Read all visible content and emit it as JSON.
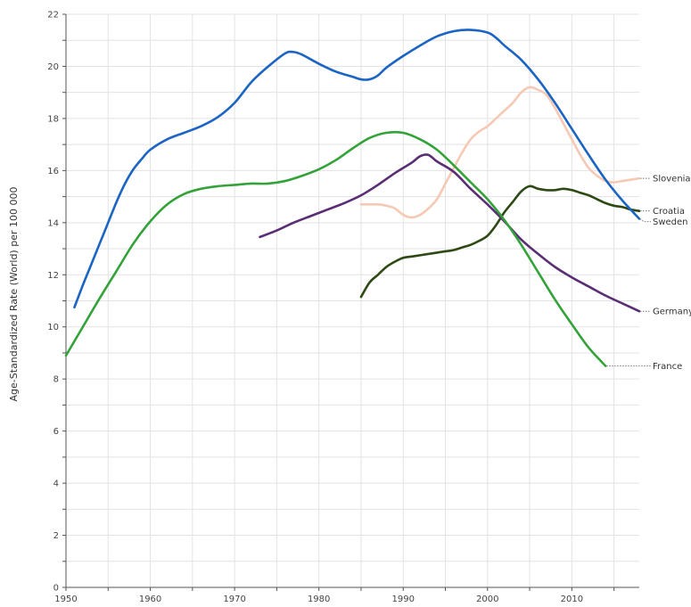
{
  "chart_data": {
    "type": "line",
    "title": "",
    "xlabel": "",
    "ylabel": "Age-Standardized Rate (World) per 100 000",
    "xlim": [
      1950,
      2018
    ],
    "ylim": [
      0,
      22
    ],
    "x_ticks": [
      1950,
      1960,
      1970,
      1980,
      1990,
      2000,
      2010
    ],
    "y_ticks": [
      0,
      2,
      4,
      6,
      8,
      10,
      12,
      14,
      16,
      18,
      20,
      22
    ],
    "grid": true,
    "legend": "series labels at right end of lines",
    "series": [
      {
        "name": "Slovenia",
        "color": "#f5c9b3",
        "points": [
          [
            1985,
            14.7
          ],
          [
            1987,
            14.7
          ],
          [
            1988,
            14.65
          ],
          [
            1989,
            14.55
          ],
          [
            1990,
            14.3
          ],
          [
            1991,
            14.2
          ],
          [
            1992,
            14.3
          ],
          [
            1993,
            14.55
          ],
          [
            1994,
            14.9
          ],
          [
            1995,
            15.5
          ],
          [
            1996,
            16.1
          ],
          [
            1997,
            16.7
          ],
          [
            1998,
            17.2
          ],
          [
            1999,
            17.5
          ],
          [
            2000,
            17.7
          ],
          [
            2001,
            18.0
          ],
          [
            2002,
            18.3
          ],
          [
            2003,
            18.6
          ],
          [
            2004,
            19.0
          ],
          [
            2005,
            19.2
          ],
          [
            2006,
            19.1
          ],
          [
            2007,
            18.9
          ],
          [
            2008,
            18.4
          ],
          [
            2009,
            17.8
          ],
          [
            2010,
            17.2
          ],
          [
            2011,
            16.6
          ],
          [
            2012,
            16.1
          ],
          [
            2013,
            15.8
          ],
          [
            2014,
            15.6
          ],
          [
            2015,
            15.55
          ],
          [
            2016,
            15.6
          ],
          [
            2017,
            15.65
          ],
          [
            2018,
            15.7
          ]
        ]
      },
      {
        "name": "Croatia",
        "color": "#2e4a14",
        "points": [
          [
            1985,
            11.15
          ],
          [
            1986,
            11.7
          ],
          [
            1987,
            12.0
          ],
          [
            1988,
            12.3
          ],
          [
            1989,
            12.5
          ],
          [
            1990,
            12.65
          ],
          [
            1991,
            12.7
          ],
          [
            1992,
            12.75
          ],
          [
            1993,
            12.8
          ],
          [
            1994,
            12.85
          ],
          [
            1995,
            12.9
          ],
          [
            1996,
            12.95
          ],
          [
            1997,
            13.05
          ],
          [
            1998,
            13.15
          ],
          [
            1999,
            13.3
          ],
          [
            2000,
            13.5
          ],
          [
            2001,
            13.9
          ],
          [
            2002,
            14.4
          ],
          [
            2003,
            14.8
          ],
          [
            2004,
            15.2
          ],
          [
            2005,
            15.4
          ],
          [
            2006,
            15.3
          ],
          [
            2007,
            15.25
          ],
          [
            2008,
            15.25
          ],
          [
            2009,
            15.3
          ],
          [
            2010,
            15.25
          ],
          [
            2011,
            15.15
          ],
          [
            2012,
            15.05
          ],
          [
            2013,
            14.9
          ],
          [
            2014,
            14.75
          ],
          [
            2015,
            14.65
          ],
          [
            2016,
            14.6
          ],
          [
            2017,
            14.5
          ],
          [
            2018,
            14.45
          ]
        ]
      },
      {
        "name": "Sweden",
        "color": "#1b64c4",
        "points": [
          [
            1951,
            10.75
          ],
          [
            1952,
            11.6
          ],
          [
            1953,
            12.4
          ],
          [
            1954,
            13.2
          ],
          [
            1955,
            14.0
          ],
          [
            1956,
            14.8
          ],
          [
            1957,
            15.5
          ],
          [
            1958,
            16.05
          ],
          [
            1959,
            16.45
          ],
          [
            1960,
            16.8
          ],
          [
            1962,
            17.2
          ],
          [
            1964,
            17.45
          ],
          [
            1966,
            17.7
          ],
          [
            1968,
            18.05
          ],
          [
            1970,
            18.6
          ],
          [
            1972,
            19.4
          ],
          [
            1974,
            20.0
          ],
          [
            1976,
            20.5
          ],
          [
            1977,
            20.55
          ],
          [
            1978,
            20.45
          ],
          [
            1980,
            20.1
          ],
          [
            1982,
            19.8
          ],
          [
            1984,
            19.6
          ],
          [
            1985,
            19.5
          ],
          [
            1986,
            19.5
          ],
          [
            1987,
            19.65
          ],
          [
            1988,
            19.95
          ],
          [
            1990,
            20.4
          ],
          [
            1992,
            20.8
          ],
          [
            1994,
            21.15
          ],
          [
            1996,
            21.35
          ],
          [
            1998,
            21.4
          ],
          [
            2000,
            21.3
          ],
          [
            2001,
            21.1
          ],
          [
            2002,
            20.8
          ],
          [
            2004,
            20.25
          ],
          [
            2006,
            19.5
          ],
          [
            2008,
            18.6
          ],
          [
            2010,
            17.6
          ],
          [
            2012,
            16.6
          ],
          [
            2014,
            15.65
          ],
          [
            2016,
            14.85
          ],
          [
            2018,
            14.15
          ]
        ]
      },
      {
        "name": "Germany",
        "color": "#5a2e74",
        "points": [
          [
            1973,
            13.45
          ],
          [
            1975,
            13.7
          ],
          [
            1977,
            14.0
          ],
          [
            1979,
            14.25
          ],
          [
            1981,
            14.5
          ],
          [
            1983,
            14.75
          ],
          [
            1985,
            15.05
          ],
          [
            1987,
            15.45
          ],
          [
            1989,
            15.9
          ],
          [
            1991,
            16.3
          ],
          [
            1992,
            16.55
          ],
          [
            1993,
            16.6
          ],
          [
            1994,
            16.35
          ],
          [
            1996,
            15.95
          ],
          [
            1998,
            15.3
          ],
          [
            2000,
            14.7
          ],
          [
            2002,
            14.05
          ],
          [
            2004,
            13.35
          ],
          [
            2006,
            12.8
          ],
          [
            2008,
            12.3
          ],
          [
            2010,
            11.9
          ],
          [
            2012,
            11.55
          ],
          [
            2014,
            11.2
          ],
          [
            2016,
            10.9
          ],
          [
            2018,
            10.6
          ]
        ]
      },
      {
        "name": "France",
        "color": "#33a339",
        "points": [
          [
            1950,
            8.9
          ],
          [
            1952,
            10.0
          ],
          [
            1954,
            11.1
          ],
          [
            1956,
            12.15
          ],
          [
            1958,
            13.2
          ],
          [
            1960,
            14.05
          ],
          [
            1962,
            14.7
          ],
          [
            1964,
            15.1
          ],
          [
            1966,
            15.3
          ],
          [
            1968,
            15.4
          ],
          [
            1970,
            15.45
          ],
          [
            1972,
            15.5
          ],
          [
            1974,
            15.5
          ],
          [
            1976,
            15.6
          ],
          [
            1978,
            15.8
          ],
          [
            1980,
            16.05
          ],
          [
            1982,
            16.4
          ],
          [
            1984,
            16.85
          ],
          [
            1986,
            17.25
          ],
          [
            1988,
            17.45
          ],
          [
            1990,
            17.45
          ],
          [
            1992,
            17.2
          ],
          [
            1994,
            16.8
          ],
          [
            1996,
            16.2
          ],
          [
            1998,
            15.55
          ],
          [
            2000,
            14.9
          ],
          [
            2002,
            14.1
          ],
          [
            2004,
            13.15
          ],
          [
            2006,
            12.1
          ],
          [
            2008,
            11.05
          ],
          [
            2010,
            10.1
          ],
          [
            2012,
            9.2
          ],
          [
            2014,
            8.5
          ]
        ]
      }
    ]
  }
}
